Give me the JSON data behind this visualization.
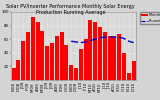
{
  "title": "Solar PV/Inverter Performance Monthly Solar Energy Production Running Average",
  "months": [
    "N'08",
    "D'08",
    "J'09",
    "F'09",
    "M'09",
    "A'09",
    "M'09",
    "J'09",
    "J'09",
    "A'09",
    "S'09",
    "O'09",
    "N'09",
    "D'09",
    "J'10",
    "F'10",
    "M'10",
    "A'10",
    "M'10",
    "J'10",
    "J'10",
    "A'10",
    "S'10",
    "O'10",
    "N'10",
    "D'10"
  ],
  "values": [
    18,
    30,
    58,
    70,
    92,
    85,
    72,
    50,
    55,
    65,
    70,
    52,
    22,
    18,
    45,
    60,
    88,
    85,
    78,
    70,
    65,
    65,
    68,
    40,
    10,
    28
  ],
  "running_avg": [
    null,
    null,
    null,
    null,
    null,
    null,
    null,
    null,
    null,
    null,
    null,
    null,
    57,
    56,
    55,
    56,
    58,
    60,
    62,
    63,
    63,
    63,
    63,
    61,
    57,
    55
  ],
  "bar_color": "#FF0000",
  "avg_color": "#0000CC",
  "bg_color": "#D4D4D4",
  "plot_bg": "#D8D8D8",
  "grid_color": "#FFFFFF",
  "ylim": [
    0,
    100
  ],
  "ytick_vals": [
    20,
    40,
    60,
    80,
    100
  ],
  "legend_labels": [
    "Monthly kWh",
    "Running Avg"
  ],
  "title_fontsize": 3.5,
  "tick_fontsize": 2.8,
  "legend_fontsize": 2.5
}
